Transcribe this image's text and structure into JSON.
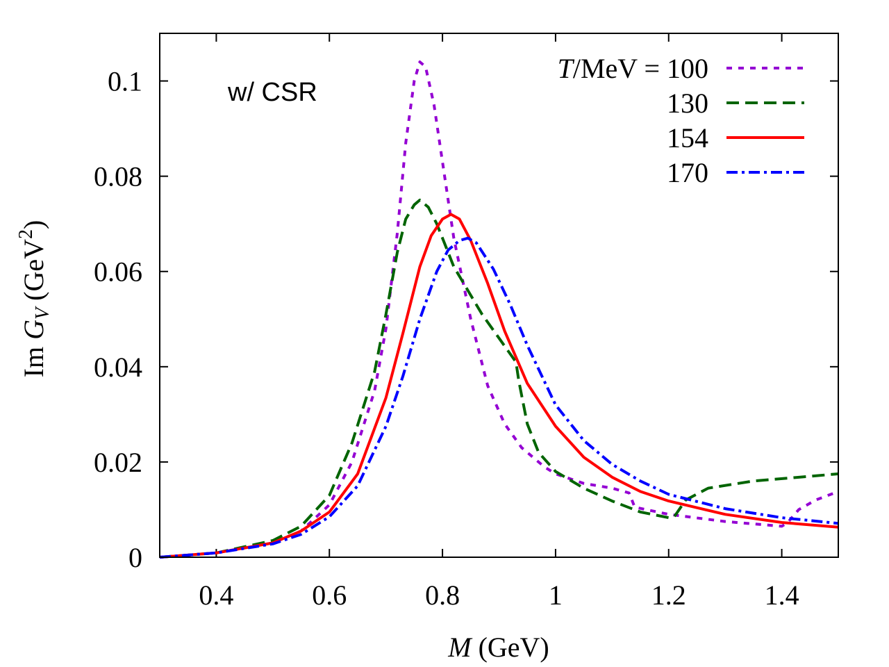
{
  "chart_data": {
    "type": "line",
    "xlabel_var": "M",
    "xlabel_rest": " (GeV)",
    "ylabel_pre": "Im ",
    "ylabel_var": "G",
    "ylabel_sub": "V",
    "ylabel_rest": " (GeV",
    "ylabel_sup": "2",
    "ylabel_close": ")",
    "annotation": "w/ CSR",
    "legend_title_var": "T",
    "legend_title_rest": "/MeV = ",
    "xlim": [
      0.3,
      1.5
    ],
    "ylim": [
      0,
      0.11
    ],
    "x_ticks": [
      {
        "v": 0.4,
        "label": "0.4"
      },
      {
        "v": 0.6,
        "label": "0.6"
      },
      {
        "v": 0.8,
        "label": "0.8"
      },
      {
        "v": 1.0,
        "label": "1"
      },
      {
        "v": 1.2,
        "label": "1.2"
      },
      {
        "v": 1.4,
        "label": "1.4"
      }
    ],
    "y_ticks": [
      {
        "v": 0,
        "label": "0"
      },
      {
        "v": 0.02,
        "label": "0.02"
      },
      {
        "v": 0.04,
        "label": "0.04"
      },
      {
        "v": 0.06,
        "label": "0.06"
      },
      {
        "v": 0.08,
        "label": "0.08"
      },
      {
        "v": 0.1,
        "label": "0.1"
      }
    ],
    "series": [
      {
        "name": "100",
        "color": "#9400d3",
        "dash": "short",
        "points": [
          [
            0.3,
            0.0
          ],
          [
            0.4,
            0.0009
          ],
          [
            0.5,
            0.003
          ],
          [
            0.55,
            0.0055
          ],
          [
            0.6,
            0.011
          ],
          [
            0.64,
            0.02
          ],
          [
            0.68,
            0.035
          ],
          [
            0.7,
            0.048
          ],
          [
            0.72,
            0.068
          ],
          [
            0.735,
            0.087
          ],
          [
            0.75,
            0.1
          ],
          [
            0.76,
            0.104
          ],
          [
            0.77,
            0.103
          ],
          [
            0.785,
            0.095
          ],
          [
            0.8,
            0.083
          ],
          [
            0.82,
            0.067
          ],
          [
            0.85,
            0.05
          ],
          [
            0.88,
            0.036
          ],
          [
            0.91,
            0.028
          ],
          [
            0.94,
            0.023
          ],
          [
            0.98,
            0.019
          ],
          [
            1.0,
            0.0175
          ],
          [
            1.05,
            0.0155
          ],
          [
            1.1,
            0.0145
          ],
          [
            1.13,
            0.0135
          ],
          [
            1.14,
            0.0105
          ],
          [
            1.2,
            0.009
          ],
          [
            1.3,
            0.0075
          ],
          [
            1.35,
            0.007
          ],
          [
            1.4,
            0.0065
          ],
          [
            1.41,
            0.0072
          ],
          [
            1.43,
            0.01
          ],
          [
            1.46,
            0.012
          ],
          [
            1.5,
            0.0138
          ]
        ]
      },
      {
        "name": "130",
        "color": "#006400",
        "dash": "long",
        "points": [
          [
            0.3,
            0.0
          ],
          [
            0.4,
            0.0009
          ],
          [
            0.5,
            0.0035
          ],
          [
            0.55,
            0.0065
          ],
          [
            0.6,
            0.013
          ],
          [
            0.64,
            0.024
          ],
          [
            0.68,
            0.039
          ],
          [
            0.7,
            0.051
          ],
          [
            0.72,
            0.064
          ],
          [
            0.735,
            0.071
          ],
          [
            0.75,
            0.074
          ],
          [
            0.76,
            0.075
          ],
          [
            0.775,
            0.0735
          ],
          [
            0.79,
            0.07
          ],
          [
            0.8,
            0.067
          ],
          [
            0.82,
            0.061
          ],
          [
            0.85,
            0.055
          ],
          [
            0.87,
            0.051
          ],
          [
            0.9,
            0.046
          ],
          [
            0.93,
            0.041
          ],
          [
            0.935,
            0.037
          ],
          [
            0.95,
            0.028
          ],
          [
            0.97,
            0.022
          ],
          [
            1.0,
            0.018
          ],
          [
            1.05,
            0.0145
          ],
          [
            1.1,
            0.0118
          ],
          [
            1.15,
            0.0095
          ],
          [
            1.2,
            0.0083
          ],
          [
            1.21,
            0.0085
          ],
          [
            1.23,
            0.012
          ],
          [
            1.27,
            0.0145
          ],
          [
            1.35,
            0.016
          ],
          [
            1.45,
            0.017
          ],
          [
            1.5,
            0.0175
          ]
        ]
      },
      {
        "name": "154",
        "color": "#ff0000",
        "dash": "solid",
        "points": [
          [
            0.3,
            0.0
          ],
          [
            0.4,
            0.0009
          ],
          [
            0.5,
            0.003
          ],
          [
            0.55,
            0.0055
          ],
          [
            0.6,
            0.0095
          ],
          [
            0.65,
            0.0175
          ],
          [
            0.7,
            0.0335
          ],
          [
            0.73,
            0.047
          ],
          [
            0.76,
            0.061
          ],
          [
            0.78,
            0.0675
          ],
          [
            0.8,
            0.071
          ],
          [
            0.815,
            0.072
          ],
          [
            0.83,
            0.071
          ],
          [
            0.85,
            0.0665
          ],
          [
            0.88,
            0.0575
          ],
          [
            0.91,
            0.0475
          ],
          [
            0.95,
            0.0365
          ],
          [
            1.0,
            0.0275
          ],
          [
            1.05,
            0.021
          ],
          [
            1.1,
            0.0168
          ],
          [
            1.15,
            0.0138
          ],
          [
            1.2,
            0.0118
          ],
          [
            1.3,
            0.009
          ],
          [
            1.4,
            0.0073
          ],
          [
            1.5,
            0.0063
          ]
        ]
      },
      {
        "name": "170",
        "color": "#0000ff",
        "dash": "dashdot",
        "points": [
          [
            0.3,
            0.0
          ],
          [
            0.4,
            0.0009
          ],
          [
            0.5,
            0.0028
          ],
          [
            0.55,
            0.0048
          ],
          [
            0.6,
            0.0085
          ],
          [
            0.65,
            0.015
          ],
          [
            0.7,
            0.0275
          ],
          [
            0.73,
            0.038
          ],
          [
            0.76,
            0.05
          ],
          [
            0.79,
            0.06
          ],
          [
            0.81,
            0.0645
          ],
          [
            0.83,
            0.0665
          ],
          [
            0.845,
            0.067
          ],
          [
            0.86,
            0.066
          ],
          [
            0.89,
            0.0605
          ],
          [
            0.92,
            0.053
          ],
          [
            0.95,
            0.0445
          ],
          [
            1.0,
            0.032
          ],
          [
            1.05,
            0.0245
          ],
          [
            1.1,
            0.0195
          ],
          [
            1.15,
            0.016
          ],
          [
            1.2,
            0.0132
          ],
          [
            1.3,
            0.0102
          ],
          [
            1.4,
            0.0083
          ],
          [
            1.5,
            0.0071
          ]
        ]
      }
    ]
  }
}
